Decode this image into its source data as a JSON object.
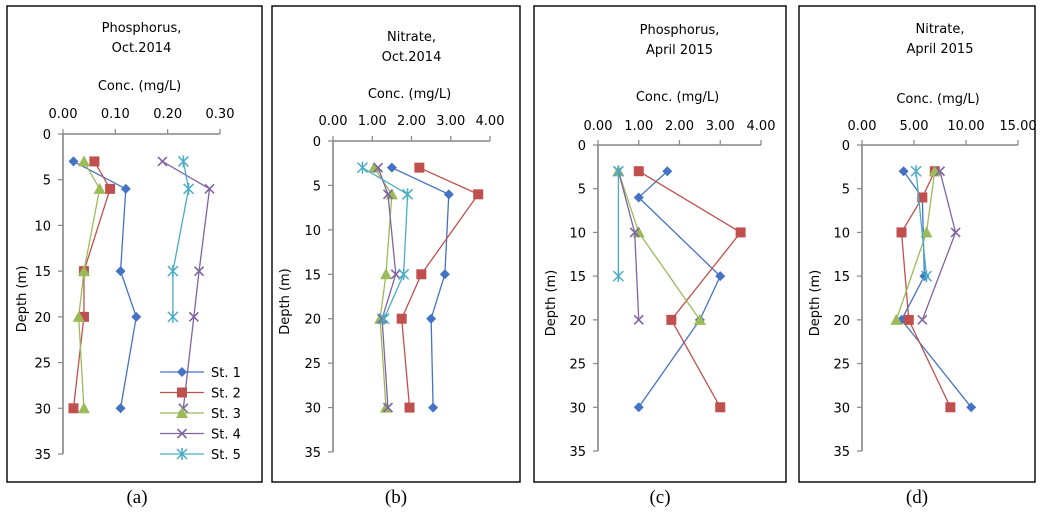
{
  "colors": {
    "St. 1": "#4472c4",
    "St. 2": "#c0504d",
    "St. 3": "#9bbb59",
    "St. 4": "#8064a2",
    "St. 5": "#4bacc6"
  },
  "legend_entries": [
    "St. 1",
    "St. 2",
    "St. 3",
    "St. 4",
    "St. 5"
  ],
  "chart_data": [
    {
      "type": "line",
      "caption": "(a)",
      "title": [
        "Phosphorus,",
        "Oct.2014"
      ],
      "xlabel": "Conc. (mg/L)",
      "ylabel": "Depth (m)",
      "xlim": [
        0,
        0.3
      ],
      "xticks": [
        "0.00",
        "0.10",
        "0.20",
        "0.30"
      ],
      "ylim": [
        0,
        35
      ],
      "yticks": [
        "0",
        "5",
        "10",
        "15",
        "20",
        "25",
        "30",
        "35"
      ],
      "legend": "bottom-right",
      "series": [
        {
          "name": "St. 1",
          "points": [
            [
              0.02,
              3
            ],
            [
              0.12,
              6
            ],
            [
              0.11,
              15
            ],
            [
              0.14,
              20
            ],
            [
              0.11,
              30
            ]
          ]
        },
        {
          "name": "St. 2",
          "points": [
            [
              0.06,
              3
            ],
            [
              0.09,
              6
            ],
            [
              0.04,
              15
            ],
            [
              0.04,
              20
            ],
            [
              0.02,
              30
            ]
          ]
        },
        {
          "name": "St. 3",
          "points": [
            [
              0.04,
              3
            ],
            [
              0.07,
              6
            ],
            [
              0.04,
              15
            ],
            [
              0.03,
              20
            ],
            [
              0.04,
              30
            ]
          ]
        },
        {
          "name": "St. 4",
          "points": [
            [
              0.19,
              3
            ],
            [
              0.28,
              6
            ],
            [
              0.26,
              15
            ],
            [
              0.25,
              20
            ],
            [
              0.23,
              30
            ]
          ]
        },
        {
          "name": "St. 5",
          "points": [
            [
              0.23,
              3
            ],
            [
              0.24,
              6
            ],
            [
              0.21,
              15
            ],
            [
              0.21,
              20
            ]
          ]
        }
      ]
    },
    {
      "type": "line",
      "caption": "(b)",
      "title": [
        "Nitrate,",
        "Oct.2014"
      ],
      "xlabel": "Conc. (mg/L)",
      "ylabel": "Depth (m)",
      "xlim": [
        0,
        4
      ],
      "xticks": [
        "0.00",
        "1.00",
        "2.00",
        "3.00",
        "4.00"
      ],
      "ylim": [
        0,
        35
      ],
      "yticks": [
        "0",
        "5",
        "10",
        "15",
        "20",
        "25",
        "30",
        "35"
      ],
      "series": [
        {
          "name": "St. 1",
          "points": [
            [
              1.5,
              3
            ],
            [
              2.95,
              6
            ],
            [
              2.85,
              15
            ],
            [
              2.5,
              20
            ],
            [
              2.55,
              30
            ]
          ]
        },
        {
          "name": "St. 2",
          "points": [
            [
              2.2,
              3
            ],
            [
              3.7,
              6
            ],
            [
              2.25,
              15
            ],
            [
              1.75,
              20
            ],
            [
              1.95,
              30
            ]
          ]
        },
        {
          "name": "St. 3",
          "points": [
            [
              1.05,
              3
            ],
            [
              1.5,
              6
            ],
            [
              1.35,
              15
            ],
            [
              1.2,
              20
            ],
            [
              1.35,
              30
            ]
          ]
        },
        {
          "name": "St. 4",
          "points": [
            [
              1.15,
              3
            ],
            [
              1.4,
              6
            ],
            [
              1.6,
              15
            ],
            [
              1.25,
              20
            ],
            [
              1.4,
              30
            ]
          ]
        },
        {
          "name": "St. 5",
          "points": [
            [
              0.75,
              3
            ],
            [
              1.9,
              6
            ],
            [
              1.8,
              15
            ],
            [
              1.3,
              20
            ]
          ]
        }
      ]
    },
    {
      "type": "line",
      "caption": "(c)",
      "title": [
        "Phosphorus,",
        "April 2015"
      ],
      "xlabel": "Conc. (mg/L)",
      "ylabel": "Depth (m)",
      "xlim": [
        0,
        4
      ],
      "xticks": [
        "0.00",
        "1.00",
        "2.00",
        "3.00",
        "4.00"
      ],
      "ylim": [
        0,
        35
      ],
      "yticks": [
        "0",
        "5",
        "10",
        "15",
        "20",
        "25",
        "30",
        "35"
      ],
      "series": [
        {
          "name": "St. 1",
          "points": [
            [
              1.7,
              3
            ],
            [
              1.0,
              6
            ],
            [
              3.0,
              15
            ],
            [
              2.5,
              20
            ],
            [
              1.0,
              30
            ]
          ]
        },
        {
          "name": "St. 2",
          "points": [
            [
              1.0,
              3
            ],
            [
              3.5,
              10
            ],
            [
              1.8,
              20
            ],
            [
              3.0,
              30
            ]
          ]
        },
        {
          "name": "St. 3",
          "points": [
            [
              0.5,
              3
            ],
            [
              1.0,
              10
            ],
            [
              2.5,
              20
            ]
          ]
        },
        {
          "name": "St. 4",
          "points": [
            [
              0.5,
              3
            ],
            [
              0.9,
              10
            ],
            [
              1.0,
              20
            ]
          ]
        },
        {
          "name": "St. 5",
          "points": [
            [
              0.5,
              3
            ],
            [
              0.5,
              15
            ]
          ]
        }
      ]
    },
    {
      "type": "line",
      "caption": "(d)",
      "title": [
        "Nitrate,",
        "April 2015"
      ],
      "xlabel": "Conc. (mg/L)",
      "ylabel": "Depth (m)",
      "xlim": [
        0,
        15
      ],
      "xticks": [
        "0.00",
        "5.00",
        "10.00",
        "15.00"
      ],
      "ylim": [
        0,
        35
      ],
      "yticks": [
        "0",
        "5",
        "10",
        "15",
        "20",
        "25",
        "30",
        "35"
      ],
      "series": [
        {
          "name": "St. 1",
          "points": [
            [
              4.0,
              3
            ],
            [
              5.8,
              6
            ],
            [
              6.0,
              15
            ],
            [
              3.8,
              20
            ],
            [
              10.5,
              30
            ]
          ]
        },
        {
          "name": "St. 2",
          "points": [
            [
              7.0,
              3
            ],
            [
              5.8,
              6
            ],
            [
              3.8,
              10
            ],
            [
              4.5,
              20
            ],
            [
              8.5,
              30
            ]
          ]
        },
        {
          "name": "St. 3",
          "points": [
            [
              7.0,
              3
            ],
            [
              6.2,
              10
            ],
            [
              3.3,
              20
            ]
          ]
        },
        {
          "name": "St. 4",
          "points": [
            [
              7.5,
              3
            ],
            [
              9.0,
              10
            ],
            [
              5.8,
              20
            ]
          ]
        },
        {
          "name": "St. 5",
          "points": [
            [
              5.2,
              3
            ],
            [
              6.2,
              15
            ]
          ]
        }
      ]
    }
  ]
}
